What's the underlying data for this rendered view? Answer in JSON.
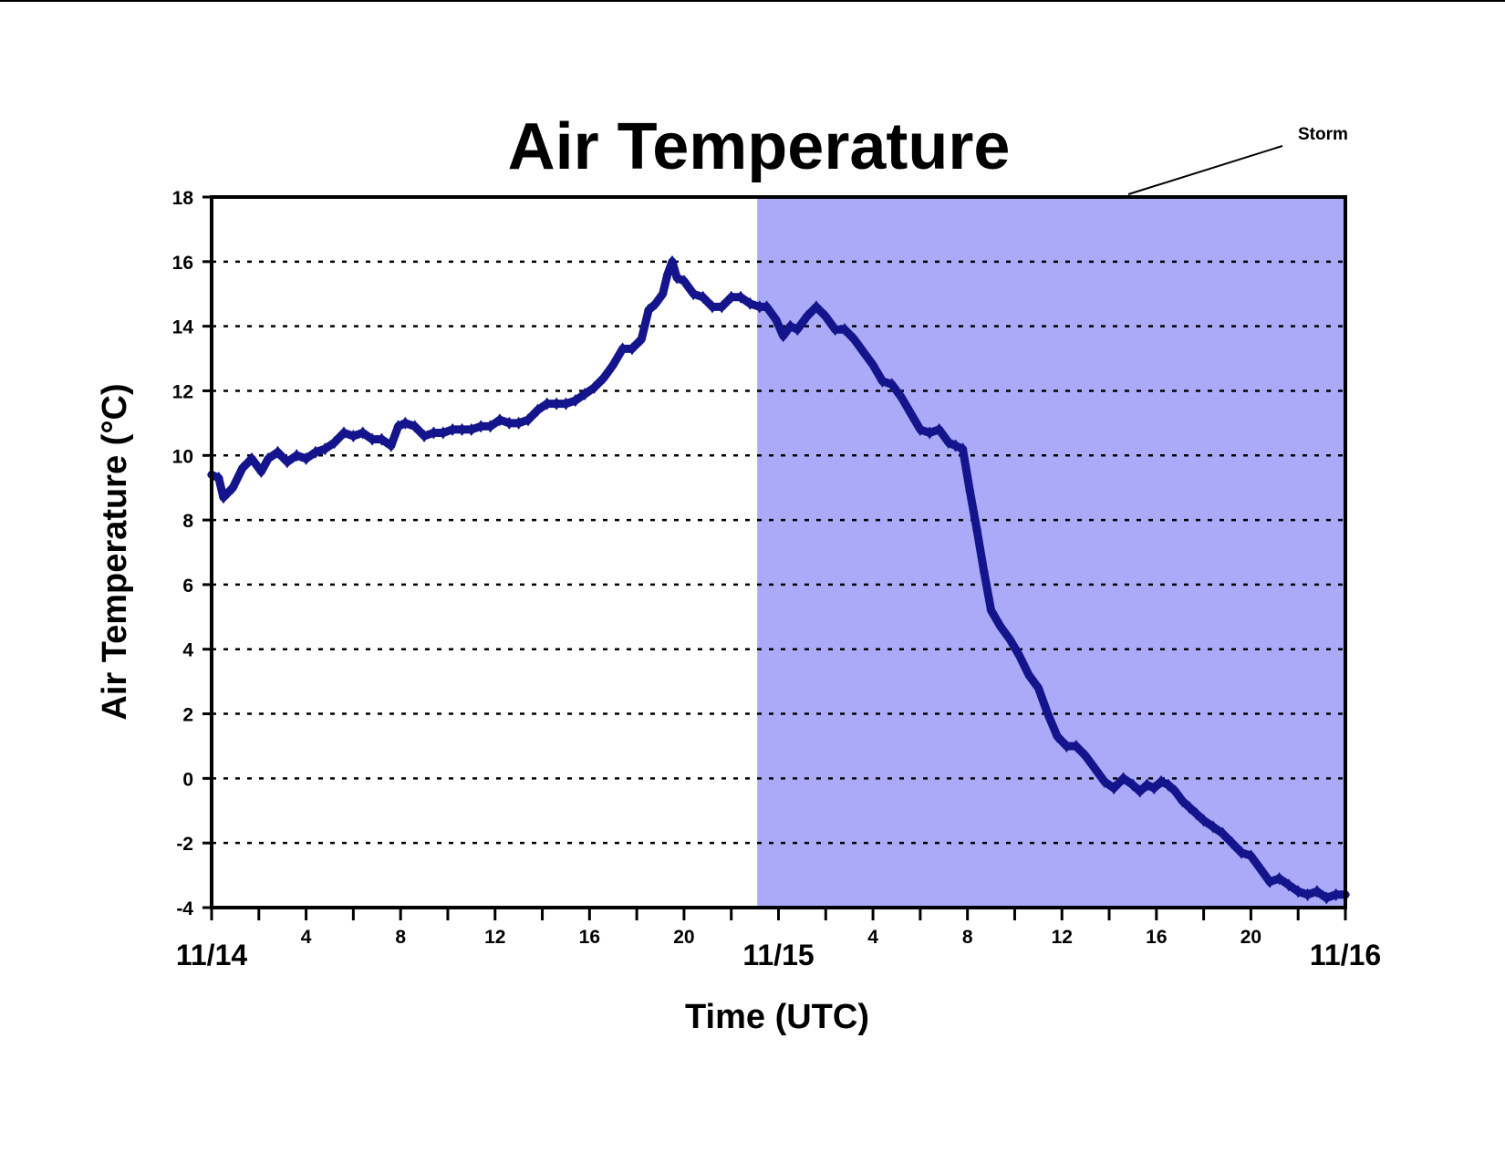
{
  "chart_data": {
    "type": "line",
    "title": "Air Temperature",
    "xlabel": "Time (UTC)",
    "ylabel": "Air Temperature (°C)",
    "ylim": [
      -4,
      18
    ],
    "xlim_hours": [
      0,
      48
    ],
    "yticks": [
      "18",
      "16",
      "14",
      "12",
      "10",
      "8",
      "6",
      "4",
      "2",
      "0",
      "-2",
      "-4"
    ],
    "xticks_minor": [
      "4",
      "8",
      "12",
      "16",
      "20",
      "4",
      "8",
      "12",
      "16",
      "20"
    ],
    "xticks_major": [
      "11/14",
      "11/15",
      "11/16"
    ],
    "grid": "horizontal dashed",
    "annotation": {
      "text": "Storm",
      "start_hour": 23.1,
      "end_hour": 48,
      "color": "#aaaaf8"
    },
    "series": [
      {
        "color": "#14148c",
        "x": [
          0,
          0.3,
          0.5,
          0.9,
          1.3,
          1.7,
          2.1,
          2.4,
          2.8,
          3.2,
          3.6,
          4.0,
          4.4,
          4.8,
          5.2,
          5.6,
          6.0,
          6.4,
          6.8,
          7.2,
          7.6,
          7.9,
          8.2,
          8.6,
          9.0,
          9.4,
          9.8,
          10.2,
          10.6,
          11.0,
          11.4,
          11.8,
          12.2,
          12.6,
          13.0,
          13.4,
          13.8,
          14.2,
          14.6,
          15.0,
          15.4,
          15.8,
          16.2,
          16.6,
          17.0,
          17.4,
          17.8,
          18.2,
          18.5,
          18.8,
          19.1,
          19.3,
          19.5,
          19.7,
          20.0,
          20.4,
          20.8,
          21.2,
          21.6,
          22.0,
          22.4,
          22.8,
          23.2,
          23.5,
          23.9,
          24.2,
          24.5,
          24.8,
          25.2,
          25.6,
          26.0,
          26.4,
          26.8,
          27.2,
          27.6,
          28.0,
          28.4,
          28.8,
          29.2,
          29.6,
          30.0,
          30.4,
          30.8,
          31.2,
          31.5,
          31.8,
          32.1,
          32.4,
          32.7,
          33.0,
          33.4,
          33.8,
          34.2,
          34.6,
          35.0,
          35.4,
          35.8,
          36.2,
          36.6,
          37.0,
          37.4,
          37.8,
          38.2,
          38.6,
          39.0,
          39.3,
          39.6,
          39.9,
          40.2,
          40.5,
          40.8,
          41.1,
          41.4,
          41.7,
          42.0,
          42.4,
          42.8,
          43.2,
          43.6,
          44.0,
          44.4,
          44.8,
          45.2,
          45.6,
          46.0,
          46.4,
          46.8,
          47.2,
          47.6,
          48.0
        ],
        "y": [
          9.4,
          9.3,
          8.7,
          9.0,
          9.6,
          9.9,
          9.5,
          9.9,
          10.1,
          9.8,
          10.0,
          9.9,
          10.1,
          10.2,
          10.4,
          10.7,
          10.6,
          10.7,
          10.5,
          10.5,
          10.3,
          10.9,
          11.0,
          10.9,
          10.6,
          10.7,
          10.7,
          10.8,
          10.8,
          10.8,
          10.9,
          10.9,
          11.1,
          11.0,
          11.0,
          11.1,
          11.4,
          11.6,
          11.6,
          11.6,
          11.7,
          11.9,
          12.1,
          12.4,
          12.8,
          13.3,
          13.3,
          13.6,
          14.5,
          14.7,
          15.0,
          15.6,
          16.0,
          15.5,
          15.4,
          15.0,
          14.9,
          14.6,
          14.6,
          14.9,
          14.9,
          14.7,
          14.6,
          14.6,
          14.2,
          13.7,
          14.0,
          13.9,
          14.3,
          14.6,
          14.3,
          13.9,
          13.9,
          13.6,
          13.2,
          12.8,
          12.3,
          12.2,
          11.8,
          11.3,
          10.8,
          10.7,
          10.8,
          10.4,
          10.3,
          10.2,
          8.9,
          7.7,
          6.4,
          5.2,
          4.7,
          4.3,
          3.8,
          3.2,
          2.8,
          2.0,
          1.3,
          1.0,
          1.0,
          0.7,
          0.3,
          -0.1,
          -0.3,
          0.0,
          -0.2,
          -0.4,
          -0.2,
          -0.3,
          -0.1,
          -0.2,
          -0.4,
          -0.7,
          -0.9,
          -1.1,
          -1.3,
          -1.5,
          -1.7,
          -2.0,
          -2.3,
          -2.4,
          -2.8,
          -3.2,
          -3.1,
          -3.3,
          -3.5,
          -3.6,
          -3.5,
          -3.7,
          -3.6,
          -3.6
        ]
      }
    ]
  }
}
